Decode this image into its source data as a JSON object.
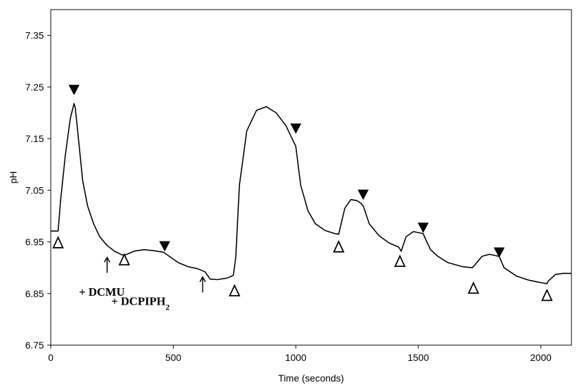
{
  "chart_data": {
    "type": "line",
    "title": "",
    "xlabel": "Time (seconds)",
    "ylabel": "pH",
    "xlim": [
      0,
      2125
    ],
    "ylim": [
      6.75,
      7.4
    ],
    "xticks": [
      0,
      500,
      1000,
      1500,
      2000
    ],
    "yticks": [
      6.75,
      6.85,
      6.95,
      7.05,
      7.15,
      7.25,
      7.35
    ],
    "grid": false,
    "legend": "none",
    "series": [
      {
        "color": "#000000",
        "x": [
          0,
          30,
          40,
          60,
          80,
          95,
          100,
          115,
          130,
          150,
          175,
          200,
          230,
          260,
          290,
          300,
          340,
          380,
          420,
          460,
          490,
          520,
          560,
          600,
          630,
          650,
          680,
          720,
          745,
          755,
          770,
          800,
          840,
          880,
          920,
          960,
          990,
          1000,
          1020,
          1050,
          1080,
          1120,
          1160,
          1175,
          1180,
          1200,
          1225,
          1250,
          1265,
          1275,
          1300,
          1340,
          1380,
          1420,
          1430,
          1450,
          1480,
          1500,
          1520,
          1530,
          1550,
          1580,
          1620,
          1680,
          1720,
          1730,
          1760,
          1790,
          1810,
          1830,
          1850,
          1900,
          1950,
          1990,
          2025,
          2030,
          2060,
          2090,
          2125
        ],
        "y": [
          6.971,
          6.971,
          7.03,
          7.12,
          7.19,
          7.218,
          7.21,
          7.14,
          7.07,
          7.02,
          6.985,
          6.96,
          6.943,
          6.932,
          6.925,
          6.924,
          6.932,
          6.935,
          6.933,
          6.93,
          6.92,
          6.91,
          6.902,
          6.898,
          6.892,
          6.878,
          6.877,
          6.88,
          6.885,
          6.92,
          7.06,
          7.165,
          7.205,
          7.212,
          7.2,
          7.175,
          7.145,
          7.135,
          7.06,
          7.01,
          6.985,
          6.972,
          6.966,
          6.965,
          6.975,
          7.015,
          7.032,
          7.03,
          7.025,
          7.02,
          6.985,
          6.962,
          6.948,
          6.94,
          6.932,
          6.96,
          6.97,
          6.968,
          6.966,
          6.955,
          6.935,
          6.922,
          6.91,
          6.902,
          6.9,
          6.905,
          6.922,
          6.926,
          6.924,
          6.922,
          6.9,
          6.884,
          6.876,
          6.872,
          6.869,
          6.874,
          6.887,
          6.889,
          6.889
        ]
      }
    ],
    "filled_markers": [
      {
        "x": 95,
        "y": 7.245
      },
      {
        "x": 465,
        "y": 6.942
      },
      {
        "x": 1000,
        "y": 7.17
      },
      {
        "x": 1275,
        "y": 7.042
      },
      {
        "x": 1520,
        "y": 6.978
      },
      {
        "x": 1830,
        "y": 6.93
      }
    ],
    "open_markers": [
      {
        "x": 30,
        "y": 6.948
      },
      {
        "x": 300,
        "y": 6.915
      },
      {
        "x": 750,
        "y": 6.855
      },
      {
        "x": 1175,
        "y": 6.94
      },
      {
        "x": 1425,
        "y": 6.912
      },
      {
        "x": 1725,
        "y": 6.86
      },
      {
        "x": 2025,
        "y": 6.846
      }
    ],
    "arrows": [
      {
        "x": 230,
        "y_tip": 6.92,
        "y_tail": 6.89
      },
      {
        "x": 620,
        "y_tip": 6.882,
        "y_tail": 6.852
      }
    ],
    "annotations": [
      {
        "id": "dcmu",
        "text": "+ DCMU",
        "x": 115,
        "y": 6.846
      },
      {
        "id": "dcpiph",
        "text": "+ DCPIPH",
        "subscript": "2",
        "x": 247,
        "y": 6.828
      }
    ]
  }
}
